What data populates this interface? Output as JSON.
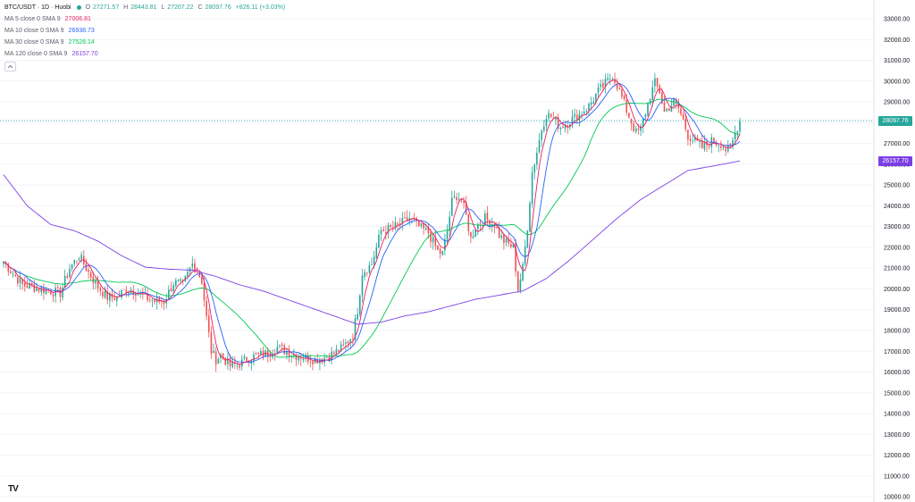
{
  "header": {
    "title": "BTC/USDT · 1D · Huobi",
    "ohlc": {
      "o_label": "O",
      "o": "27271.57",
      "h_label": "H",
      "h": "28443.81",
      "l_label": "L",
      "l": "27207.22",
      "c_label": "C",
      "c": "28097.76",
      "change": "+826.11 (+3.03%)"
    }
  },
  "indicators": [
    {
      "label": "MA 5 close 0 SMA 9",
      "value": "27006.81",
      "color": "#e91e63"
    },
    {
      "label": "MA 10 close 0 SMA 9",
      "value": "26938.73",
      "color": "#2962ff"
    },
    {
      "label": "MA 30 close 0 SMA 9",
      "value": "27528.14",
      "color": "#00c853"
    },
    {
      "label": "MA 120 close 0 SMA 9",
      "value": "26157.70",
      "color": "#7b3fe4"
    }
  ],
  "price_tags": {
    "last": "28097.76",
    "ma120": "26157.70"
  },
  "colors": {
    "up": "#26a69a",
    "down": "#ef5350",
    "ma5": "#e91e63",
    "ma10": "#2962ff",
    "ma30": "#00c853",
    "ma120": "#7b3fe4",
    "grid": "#f0f3fa",
    "lastline": "#26a69a"
  },
  "logo": "TV",
  "chart_data": {
    "type": "candlestick",
    "symbol": "BTC/USDT",
    "interval": "1D",
    "exchange": "Huobi",
    "ylim": [
      10000,
      33500
    ],
    "y_ticks": [
      "33000.00",
      "32000.00",
      "31000.00",
      "30000.00",
      "29000.00",
      "28000.00",
      "27000.00",
      "26000.00",
      "25000.00",
      "24000.00",
      "23000.00",
      "22000.00",
      "21000.00",
      "20000.00",
      "19000.00",
      "18000.00",
      "17000.00",
      "16000.00",
      "15000.00",
      "14000.00",
      "13000.00",
      "12000.00",
      "11000.00",
      "10000.00"
    ],
    "close_points": [
      [
        0,
        21300
      ],
      [
        8,
        20200
      ],
      [
        16,
        20000
      ],
      [
        24,
        19800
      ],
      [
        28,
        21000
      ],
      [
        32,
        21600
      ],
      [
        36,
        20800
      ],
      [
        40,
        20100
      ],
      [
        44,
        19600
      ],
      [
        48,
        19600
      ],
      [
        52,
        20000
      ],
      [
        56,
        19900
      ],
      [
        60,
        19600
      ],
      [
        64,
        19400
      ],
      [
        68,
        19400
      ],
      [
        72,
        20300
      ],
      [
        76,
        20200
      ],
      [
        80,
        21200
      ],
      [
        82,
        20900
      ],
      [
        84,
        20400
      ],
      [
        86,
        18600
      ],
      [
        88,
        17000
      ],
      [
        90,
        16600
      ],
      [
        92,
        16800
      ],
      [
        96,
        16300
      ],
      [
        100,
        16400
      ],
      [
        104,
        16700
      ],
      [
        108,
        16800
      ],
      [
        112,
        16900
      ],
      [
        116,
        17200
      ],
      [
        120,
        17000
      ],
      [
        124,
        16800
      ],
      [
        128,
        16700
      ],
      [
        132,
        16600
      ],
      [
        136,
        16700
      ],
      [
        140,
        16900
      ],
      [
        144,
        17200
      ],
      [
        148,
        17800
      ],
      [
        150,
        19000
      ],
      [
        152,
        20800
      ],
      [
        154,
        21000
      ],
      [
        156,
        21200
      ],
      [
        160,
        22800
      ],
      [
        164,
        22900
      ],
      [
        168,
        23100
      ],
      [
        172,
        23400
      ],
      [
        176,
        23000
      ],
      [
        180,
        22700
      ],
      [
        184,
        21800
      ],
      [
        186,
        21700
      ],
      [
        188,
        22800
      ],
      [
        190,
        24200
      ],
      [
        192,
        24500
      ],
      [
        194,
        24300
      ],
      [
        196,
        23500
      ],
      [
        198,
        22400
      ],
      [
        200,
        23000
      ],
      [
        204,
        23400
      ],
      [
        208,
        23100
      ],
      [
        210,
        22600
      ],
      [
        212,
        22300
      ],
      [
        216,
        22000
      ],
      [
        218,
        20000
      ],
      [
        220,
        21000
      ],
      [
        222,
        23000
      ],
      [
        224,
        25600
      ],
      [
        226,
        26600
      ],
      [
        228,
        27700
      ],
      [
        230,
        28400
      ],
      [
        232,
        28300
      ],
      [
        236,
        27800
      ],
      [
        240,
        28100
      ],
      [
        244,
        28400
      ],
      [
        248,
        28800
      ],
      [
        252,
        29500
      ],
      [
        256,
        30000
      ],
      [
        258,
        30300
      ],
      [
        260,
        29800
      ],
      [
        264,
        28600
      ],
      [
        268,
        27500
      ],
      [
        270,
        27700
      ],
      [
        274,
        29300
      ],
      [
        276,
        29900
      ],
      [
        278,
        29500
      ],
      [
        280,
        28500
      ],
      [
        284,
        29000
      ],
      [
        286,
        28700
      ],
      [
        288,
        28100
      ],
      [
        290,
        27400
      ],
      [
        292,
        27200
      ],
      [
        294,
        27000
      ],
      [
        296,
        26800
      ],
      [
        300,
        27100
      ],
      [
        304,
        27000
      ],
      [
        306,
        26700
      ],
      [
        308,
        26700
      ],
      [
        310,
        27500
      ],
      [
        312,
        28097
      ]
    ],
    "n_candles": 313,
    "series": [
      {
        "name": "MA 5 close 0 SMA 9",
        "last": 27006.81
      },
      {
        "name": "MA 10 close 0 SMA 9",
        "last": 26938.73
      },
      {
        "name": "MA 30 close 0 SMA 9",
        "last": 27528.14
      },
      {
        "name": "MA 120 close 0 SMA 9",
        "last": 26157.7,
        "points": [
          [
            0,
            25500
          ],
          [
            10,
            24000
          ],
          [
            20,
            23100
          ],
          [
            30,
            22800
          ],
          [
            40,
            22300
          ],
          [
            50,
            21600
          ],
          [
            60,
            21050
          ],
          [
            70,
            20950
          ],
          [
            80,
            20900
          ],
          [
            90,
            20600
          ],
          [
            100,
            20200
          ],
          [
            110,
            19900
          ],
          [
            120,
            19500
          ],
          [
            130,
            19100
          ],
          [
            140,
            18700
          ],
          [
            150,
            18300
          ],
          [
            160,
            18400
          ],
          [
            170,
            18700
          ],
          [
            180,
            18900
          ],
          [
            190,
            19200
          ],
          [
            200,
            19500
          ],
          [
            210,
            19700
          ],
          [
            220,
            19900
          ],
          [
            230,
            20500
          ],
          [
            240,
            21400
          ],
          [
            250,
            22400
          ],
          [
            260,
            23400
          ],
          [
            270,
            24300
          ],
          [
            280,
            25000
          ],
          [
            290,
            25700
          ],
          [
            300,
            25900
          ],
          [
            312,
            26157
          ]
        ]
      }
    ],
    "last_price": 28097.76
  }
}
